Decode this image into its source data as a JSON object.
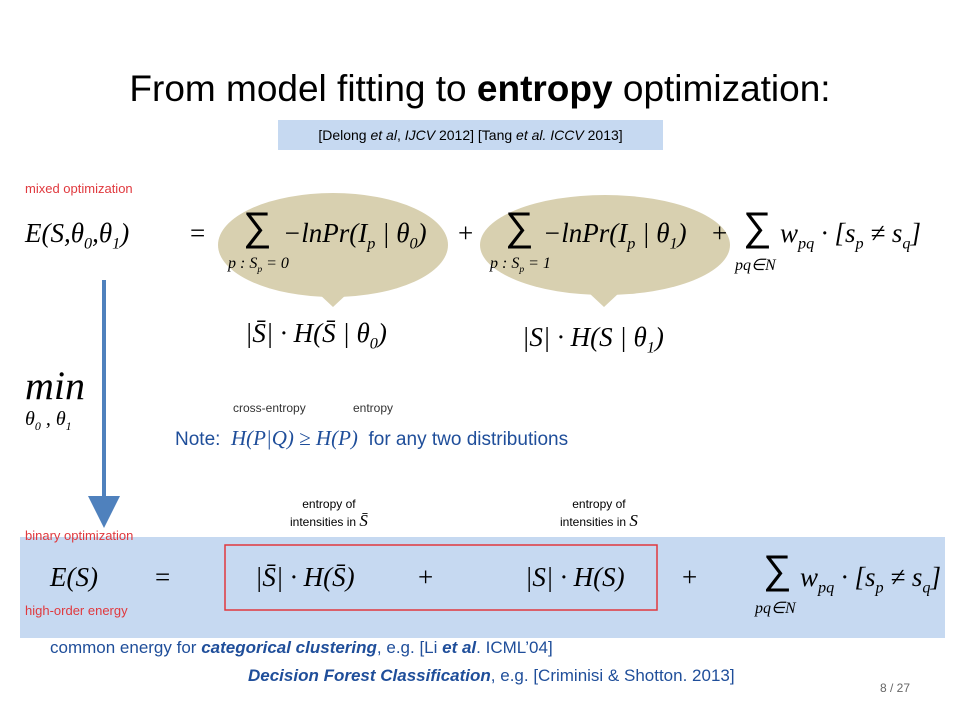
{
  "title": {
    "plain": "From model fitting to ",
    "bold": "entropy",
    "end": " optimization:"
  },
  "citation": [
    "[Delong ",
    "et al",
    ", ",
    "IJCV",
    " 2012] [Tang ",
    "et al. ICCV",
    " 2013]"
  ],
  "labels": {
    "mixed": "mixed optimization",
    "binary": "binary optimization",
    "high_order": "high-order energy"
  },
  "formula_top": {
    "lhs": [
      "E(S,θ",
      "0",
      ",θ",
      "1",
      ")"
    ],
    "eq": "=",
    "sum": "∑",
    "lim1": [
      "p : S",
      "p",
      " = 0"
    ],
    "term1": [
      "−lnPr(I",
      "p",
      " | θ",
      "0",
      ")"
    ],
    "plus": "+",
    "lim2": [
      "p : S",
      "p",
      " = 1"
    ],
    "term2": [
      "−lnPr(I",
      "p",
      " | θ",
      "1",
      ")"
    ],
    "lim3": [
      "pq∈N"
    ],
    "term3": [
      "w",
      "pq",
      " · [s",
      "p",
      " ≠ s",
      "q",
      "]"
    ]
  },
  "entropy_terms": [
    [
      "|S̄| · H(S̄ | θ",
      "0",
      ")"
    ],
    [
      "|S| · H(S | θ",
      "1",
      ")"
    ]
  ],
  "min": {
    "word": "min",
    "sub": [
      "θ",
      "0",
      " , θ",
      "1"
    ]
  },
  "note": {
    "cross_entropy": "cross-entropy",
    "entropy": "entropy",
    "label": "Note:",
    "formula": "H(P|Q) ≥ H(P)",
    "text": "for any two distributions"
  },
  "annotations": [
    {
      "line1": "entropy of",
      "line2": "intensities in",
      "symbol": "S̄"
    },
    {
      "line1": "entropy of",
      "line2": "intensities in",
      "symbol": "S"
    }
  ],
  "formula_bottom": {
    "lhs": "E(S)",
    "eq": "=",
    "term1": "|S̄| · H(S̄)",
    "plus": "+",
    "term2": "|S| · H(S)",
    "sum": "∑",
    "lim": [
      "pq∈N"
    ],
    "term3": [
      "w",
      "pq",
      " · [s",
      "p",
      " ≠ s",
      "q",
      "]"
    ]
  },
  "footer": {
    "line1": [
      "common energy for ",
      "categorical clustering",
      ", e.g. [Li ",
      "et al",
      ". ICML’04]"
    ],
    "line2": {
      "italic": "Decision Forest Classification",
      "rest": ", e.g. [Criminisi & Shotton. 2013]"
    }
  },
  "page_number": "8 / 27"
}
